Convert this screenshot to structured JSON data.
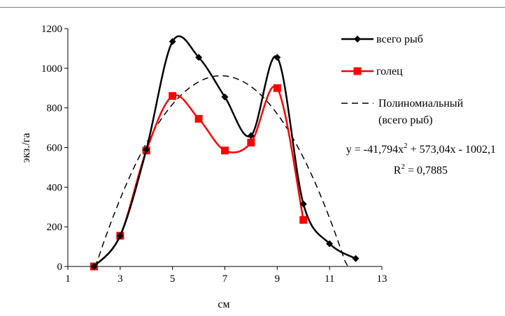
{
  "chart_data": {
    "type": "line",
    "title": "",
    "xlabel": "см",
    "ylabel": "экз./га",
    "xlim": [
      1,
      13
    ],
    "ylim": [
      0,
      1200
    ],
    "xticks": [
      1,
      3,
      5,
      7,
      9,
      11,
      13
    ],
    "yticks": [
      0,
      200,
      400,
      600,
      800,
      1000,
      1200
    ],
    "grid": false,
    "legend_position": "right",
    "series": [
      {
        "name": "всего рыб",
        "color": "#000000",
        "marker": "diamond",
        "x": [
          2,
          3,
          4,
          5,
          6,
          7,
          8,
          9,
          10,
          11,
          12
        ],
        "y": [
          0,
          155,
          590,
          1135,
          1055,
          855,
          660,
          1055,
          315,
          115,
          40
        ]
      },
      {
        "name": "голец",
        "color": "#ff0000",
        "marker": "square",
        "x": [
          2,
          3,
          4,
          5,
          6,
          7,
          8,
          9,
          10
        ],
        "y": [
          0,
          155,
          585,
          860,
          745,
          585,
          625,
          900,
          235
        ]
      }
    ],
    "trendline": {
      "name_line1": "Полиномиальный",
      "name_line2": "(всего рыб)",
      "style": "dashed",
      "color": "#000000",
      "coefficients": [
        -41.794,
        573.04,
        -1002.1
      ],
      "x_start": 2,
      "x_end": 11.7
    },
    "equation_prefix": "y = -41,794x",
    "equation_sup": "2",
    "equation_suffix": " + 573,04x - 1002,1",
    "r2_prefix": "R",
    "r2_sup": "2",
    "r2_suffix": " = 0,7885"
  }
}
